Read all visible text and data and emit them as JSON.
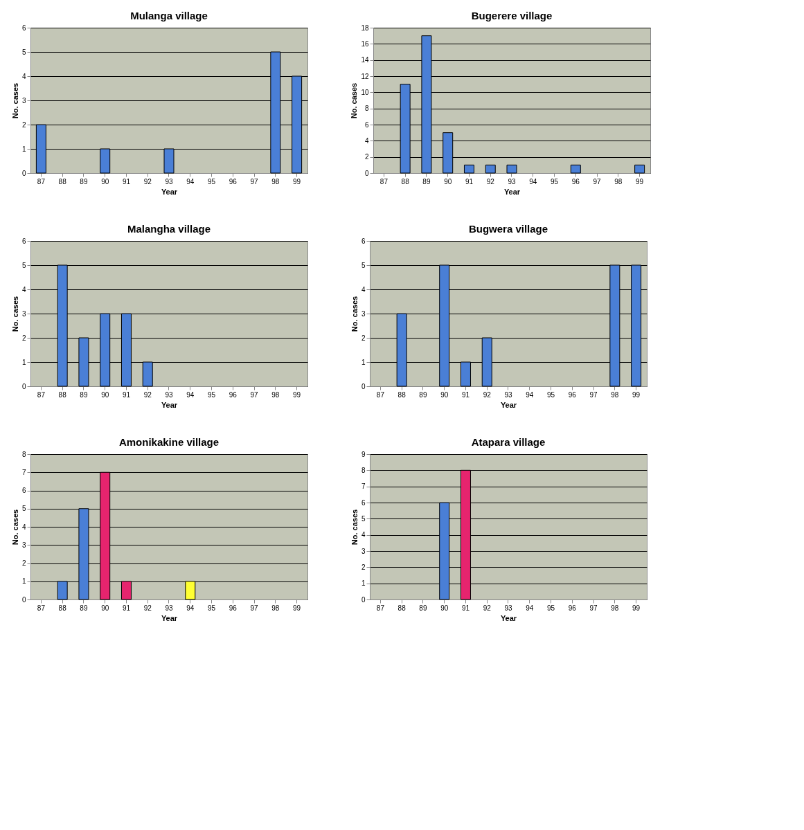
{
  "chart_data": [
    {
      "type": "bar",
      "title": "Mulanga village",
      "xlabel": "Year",
      "ylabel": "No. cases",
      "categories": [
        "87",
        "88",
        "89",
        "90",
        "91",
        "92",
        "93",
        "94",
        "95",
        "96",
        "97",
        "98",
        "99"
      ],
      "values": [
        2,
        null,
        null,
        1,
        null,
        null,
        1,
        null,
        null,
        null,
        null,
        5,
        4
      ],
      "colors": [
        "#4a7fd6",
        null,
        null,
        "#4a7fd6",
        null,
        null,
        "#4a7fd6",
        null,
        null,
        null,
        null,
        "#4a7fd6",
        "#4a7fd6"
      ],
      "ylim": [
        0,
        6
      ],
      "yticks": [
        0,
        1,
        2,
        3,
        4,
        5,
        6
      ],
      "grid": "y"
    },
    {
      "type": "bar",
      "title": "Bugerere village",
      "xlabel": "Year",
      "ylabel": "No. cases",
      "categories": [
        "87",
        "88",
        "89",
        "90",
        "91",
        "92",
        "93",
        "94",
        "95",
        "96",
        "97",
        "98",
        "99"
      ],
      "values": [
        null,
        11,
        17,
        5,
        1,
        1,
        1,
        null,
        null,
        1,
        null,
        null,
        1
      ],
      "colors": [
        null,
        "#4a7fd6",
        "#4a7fd6",
        "#4a7fd6",
        "#4a7fd6",
        "#4a7fd6",
        "#4a7fd6",
        null,
        null,
        "#4a7fd6",
        null,
        null,
        "#4a7fd6"
      ],
      "ylim": [
        0,
        18
      ],
      "yticks": [
        0,
        2,
        4,
        6,
        8,
        10,
        12,
        14,
        16,
        18
      ],
      "grid": "y"
    },
    {
      "type": "bar",
      "title": "Malangha  village",
      "xlabel": "Year",
      "ylabel": "No. cases",
      "categories": [
        "87",
        "88",
        "89",
        "90",
        "91",
        "92",
        "93",
        "94",
        "95",
        "96",
        "97",
        "98",
        "99"
      ],
      "values": [
        null,
        5,
        2,
        3,
        3,
        1,
        null,
        null,
        null,
        null,
        null,
        null,
        null
      ],
      "colors": [
        null,
        "#4a7fd6",
        "#4a7fd6",
        "#4a7fd6",
        "#4a7fd6",
        "#4a7fd6",
        null,
        null,
        null,
        null,
        null,
        null,
        null
      ],
      "ylim": [
        0,
        6
      ],
      "yticks": [
        0,
        1,
        2,
        3,
        4,
        5,
        6
      ],
      "grid": "y"
    },
    {
      "type": "bar",
      "title": "Bugwera village",
      "xlabel": "Year",
      "ylabel": "No. cases",
      "categories": [
        "87",
        "88",
        "89",
        "90",
        "91",
        "92",
        "93",
        "94",
        "95",
        "96",
        "97",
        "98",
        "99"
      ],
      "values": [
        null,
        3,
        null,
        5,
        1,
        2,
        null,
        null,
        null,
        null,
        null,
        5,
        5
      ],
      "colors": [
        null,
        "#4a7fd6",
        null,
        "#4a7fd6",
        "#4a7fd6",
        "#4a7fd6",
        null,
        null,
        null,
        null,
        null,
        "#4a7fd6",
        "#4a7fd6"
      ],
      "ylim": [
        0,
        6
      ],
      "yticks": [
        0,
        1,
        2,
        3,
        4,
        5,
        6
      ],
      "grid": "y"
    },
    {
      "type": "bar",
      "title": "Amonikakine village",
      "xlabel": "Year",
      "ylabel": "No. cases",
      "categories": [
        "87",
        "88",
        "89",
        "90",
        "91",
        "92",
        "93",
        "94",
        "95",
        "96",
        "97",
        "98",
        "99"
      ],
      "values": [
        null,
        1,
        5,
        7,
        1,
        null,
        null,
        1,
        null,
        null,
        null,
        null,
        null
      ],
      "colors": [
        null,
        "#4a7fd6",
        "#4a7fd6",
        "#e6246e",
        "#e6246e",
        null,
        null,
        "#ffff33",
        null,
        null,
        null,
        null,
        null
      ],
      "ylim": [
        0,
        8
      ],
      "yticks": [
        0,
        1,
        2,
        3,
        4,
        5,
        6,
        7,
        8
      ],
      "grid": "y"
    },
    {
      "type": "bar",
      "title": "Atapara village",
      "xlabel": "Year",
      "ylabel": "No. cases",
      "categories": [
        "87",
        "88",
        "89",
        "90",
        "91",
        "92",
        "93",
        "94",
        "95",
        "96",
        "97",
        "98",
        "99"
      ],
      "values": [
        null,
        null,
        null,
        6,
        8,
        null,
        null,
        null,
        null,
        null,
        null,
        null,
        null
      ],
      "colors": [
        null,
        null,
        null,
        "#4a7fd6",
        "#e6246e",
        null,
        null,
        null,
        null,
        null,
        null,
        null,
        null
      ],
      "ylim": [
        0,
        9
      ],
      "yticks": [
        0,
        1,
        2,
        3,
        4,
        5,
        6,
        7,
        8,
        9
      ],
      "grid": "y"
    }
  ]
}
